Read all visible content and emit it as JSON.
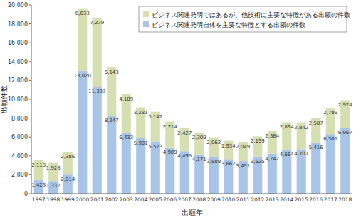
{
  "chart_data": {
    "type": "bar",
    "stacked": true,
    "data_labels": true,
    "legend": "top-right",
    "grid": false,
    "xlabel": "出願年",
    "ylabel": "出願件数",
    "categories": [
      "1997",
      "1998",
      "1999",
      "2000",
      "2001",
      "2002",
      "2003",
      "2004",
      "2005",
      "2006",
      "2007",
      "2008",
      "2009",
      "2010",
      "2011",
      "2012",
      "2013",
      "2014",
      "2015",
      "2016",
      "2017",
      "2018"
    ],
    "ylim": [
      0,
      20000
    ],
    "yticks": [
      0,
      {
        "value": 2000,
        "label": "2,000"
      },
      {
        "value": 4000,
        "label": "4,000"
      },
      {
        "value": 6000,
        "label": "6,000"
      },
      {
        "value": 8000,
        "label": "8,000"
      },
      {
        "value": 10000,
        "label": "10,000"
      },
      {
        "value": 12000,
        "label": "12,000"
      },
      {
        "value": 14000,
        "label": "14,000"
      },
      {
        "value": 16000,
        "label": "16,000"
      },
      {
        "value": 18000,
        "label": "18,000"
      },
      {
        "value": 20000,
        "label": "20,000"
      }
    ],
    "series": [
      {
        "name": "ビジネス関連発明自体を主要な特徴とする出願の件数",
        "color": "#a8c4e6",
        "values": [
          1423,
          1332,
          2014,
          13020,
          11337,
          8247,
          6433,
          5901,
          5523,
          4909,
          4495,
          4171,
          3908,
          3662,
          3451,
          3925,
          4242,
          4664,
          4707,
          5416,
          6301,
          6967
        ],
        "value_labels": [
          "1,423",
          "1,332",
          "2,014",
          "13,020",
          "11,337",
          "8,247",
          "6,433",
          "5,901",
          "5,523",
          "4,909",
          "4,495",
          "4,171",
          "3,908",
          "3,662",
          "3,451",
          "3,925",
          "4,242",
          "4,664",
          "4,707",
          "5,416",
          "6,301",
          "6,967"
        ]
      },
      {
        "name": "ビジネス関連発明ではあるが、他技術に主要な特徴がある出願の件数",
        "color": "#d6dfb2",
        "values": [
          2113,
          1928,
          2386,
          6633,
          7279,
          5143,
          4109,
          3231,
          3142,
          2714,
          2427,
          2309,
          2062,
          1934,
          2049,
          2139,
          2384,
          2894,
          2842,
          2587,
          2789,
          2924
        ],
        "value_labels": [
          "2,113",
          "1,928",
          "2,386",
          "6,633",
          "7,279",
          "5,143",
          "4,109",
          "3,231",
          "3,142",
          "2,714",
          "2,427",
          "2,309",
          "2,062",
          "1,934",
          "2,049",
          "2,139",
          "2,384",
          "2,894",
          "2,842",
          "2,587",
          "2,789",
          "2,924"
        ]
      }
    ]
  }
}
